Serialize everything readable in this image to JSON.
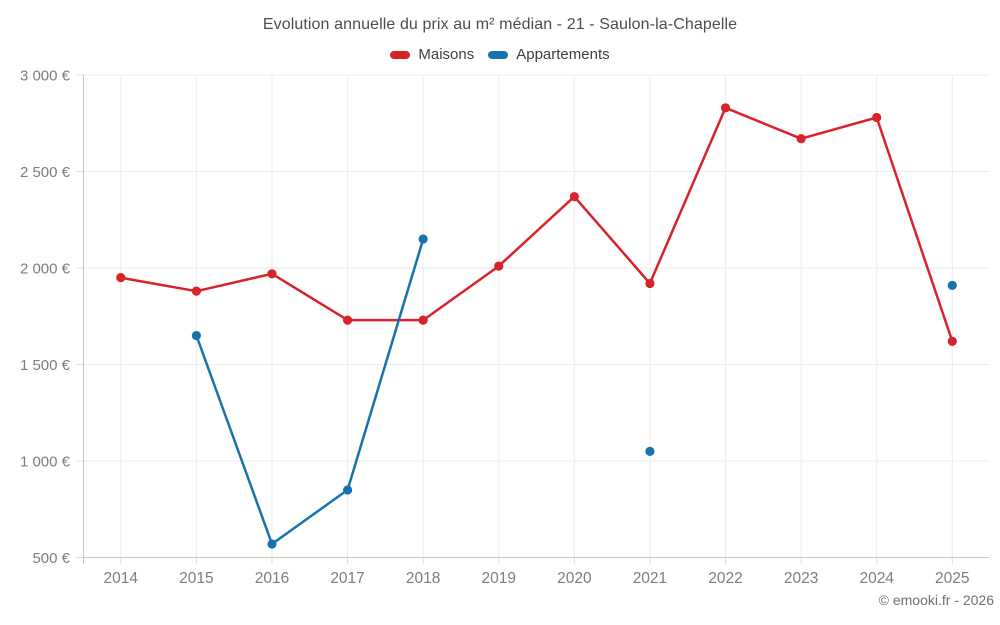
{
  "title": "Evolution annuelle du prix au m² médian - 21 - Saulon-la-Chapelle",
  "footer": "© emooki.fr - 2026",
  "colors": {
    "maisons": "#d8232a",
    "appartements": "#1873ac",
    "grid": "#ededed",
    "axis": "#c7c7c7",
    "tick": "#dcdcdc",
    "axis_label": "#7d7d7d",
    "title_text": "#4d4d4d",
    "legend_text": "#3f3f3f",
    "footer_text": "#707070"
  },
  "chart_data": {
    "type": "line",
    "title": "Evolution annuelle du prix au m² médian - 21 - Saulon-la-Chapelle",
    "categories": [
      "2014",
      "2015",
      "2016",
      "2017",
      "2018",
      "2019",
      "2020",
      "2021",
      "2022",
      "2023",
      "2024",
      "2025"
    ],
    "series": [
      {
        "name": "Maisons",
        "color": "#d8232a",
        "values": [
          1950,
          1880,
          1970,
          1730,
          1730,
          2010,
          2370,
          1920,
          2830,
          2670,
          2780,
          1620
        ]
      },
      {
        "name": "Appartements",
        "color": "#1873ac",
        "values": [
          null,
          1650,
          570,
          850,
          2150,
          null,
          null,
          1050,
          null,
          null,
          null,
          1910
        ]
      }
    ],
    "xlabel": "",
    "ylabel": "",
    "ylim": [
      500,
      3000
    ],
    "yticks": [
      {
        "value": 500,
        "label": "500 €"
      },
      {
        "value": 1000,
        "label": "1 000 €"
      },
      {
        "value": 1500,
        "label": "1 500 €"
      },
      {
        "value": 2000,
        "label": "2 000 €"
      },
      {
        "value": 2500,
        "label": "2 500 €"
      },
      {
        "value": 3000,
        "label": "3 000 €"
      }
    ],
    "grid": true,
    "legend_position": "top",
    "marker": "circle",
    "footer": "© emooki.fr - 2026"
  }
}
